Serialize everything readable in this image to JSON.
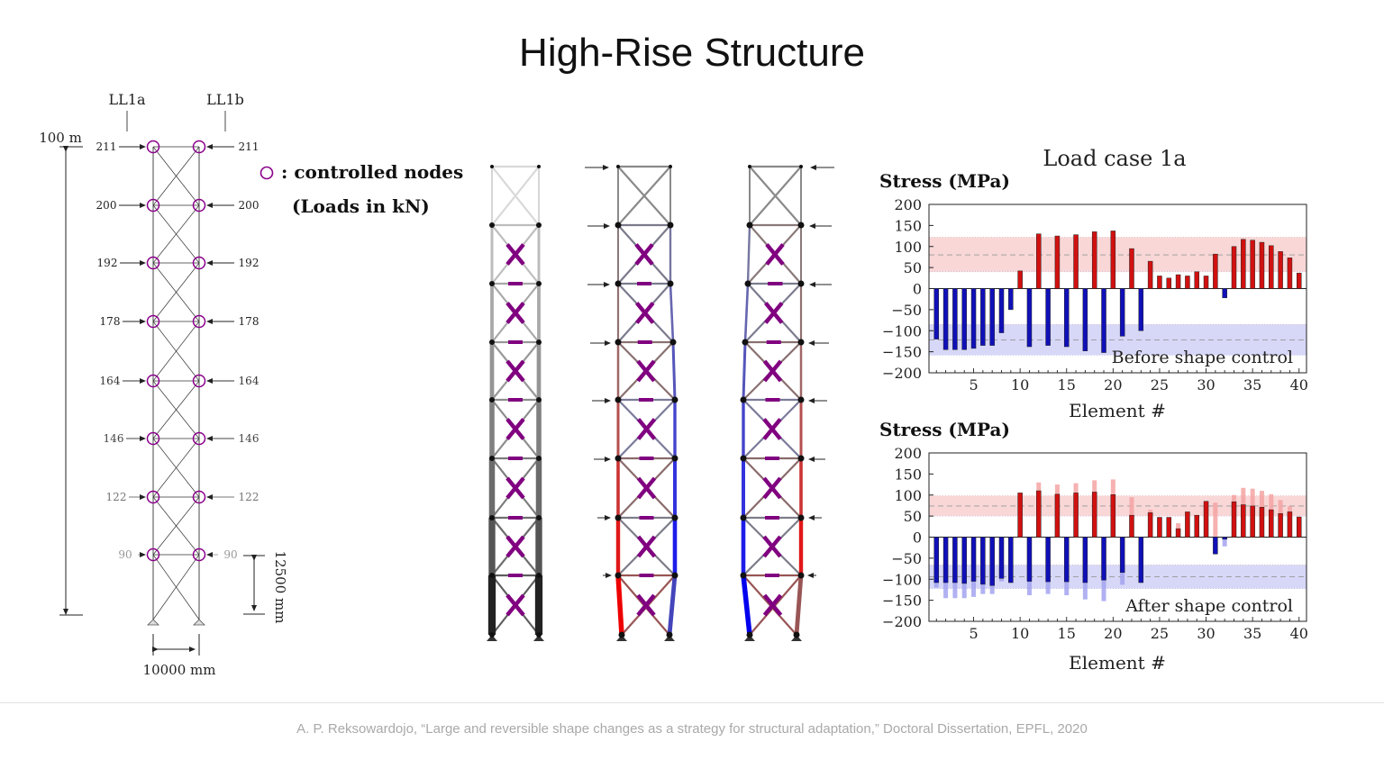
{
  "title": "High-Rise Structure",
  "footer": {
    "citation": "A. P. Reksowardojo, “Large and reversible shape changes as a strategy for structural adaptation,” Doctoral Dissertation, EPFL, 2020"
  },
  "schematic": {
    "load_case_a_label": "LL1a",
    "load_case_b_label": "LL1b",
    "height_label": "100 m",
    "width_label": "10000 mm",
    "bay_height_label": "12500 mm",
    "loads_kN": [
      "211",
      "200",
      "192",
      "178",
      "164",
      "146",
      "122",
      "90"
    ],
    "legend_controlled_nodes": ": controlled nodes",
    "legend_loads_unit": "(Loads in kN)",
    "colors": {
      "controlled_node": "#8b008b",
      "members": "#333333"
    }
  },
  "towers": {
    "colors": {
      "tension": "#ee0000",
      "compression": "#0000ee",
      "actuator": "#800080",
      "neutral": "#777777"
    }
  },
  "chart_data": [
    {
      "type": "bar",
      "title": "Load case 1a",
      "ylabel": "Stress (MPa)",
      "xlabel": "Element #",
      "annotation": "Before shape control",
      "ylim": [
        -200,
        200
      ],
      "yticks": [
        "200",
        "150",
        "100",
        "50",
        "0",
        "−50",
        "−100",
        "−150",
        "−200"
      ],
      "xticks": [
        "5",
        "10",
        "15",
        "20",
        "25",
        "30",
        "35",
        "40"
      ],
      "x": [
        1,
        2,
        3,
        4,
        5,
        6,
        7,
        8,
        9,
        10,
        11,
        12,
        13,
        14,
        15,
        16,
        17,
        18,
        19,
        20,
        21,
        22,
        23,
        24,
        25,
        26,
        27,
        28,
        29,
        30,
        31,
        32,
        33,
        34,
        35,
        36,
        37,
        38,
        39,
        40
      ],
      "values": [
        -120,
        -145,
        -145,
        -145,
        -142,
        -135,
        -135,
        -105,
        -50,
        42,
        -138,
        130,
        -135,
        125,
        -138,
        128,
        -148,
        135,
        -152,
        137,
        -113,
        95,
        -100,
        65,
        30,
        25,
        33,
        30,
        40,
        30,
        82,
        -22,
        100,
        117,
        115,
        110,
        102,
        88,
        73,
        37
      ],
      "bands": [
        {
          "from": 40,
          "to": 122,
          "mean": 80,
          "color": "#f7c9c9"
        },
        {
          "from": -158,
          "to": -85,
          "mean": -122,
          "color": "#c9c9f5"
        }
      ],
      "colors": {
        "positive": "#d11010",
        "negative": "#1010b8"
      },
      "grid": false
    },
    {
      "type": "bar",
      "ylabel": "Stress (MPa)",
      "xlabel": "Element #",
      "annotation": "After shape control",
      "ylim": [
        -200,
        200
      ],
      "yticks": [
        "200",
        "150",
        "100",
        "50",
        "0",
        "−50",
        "−100",
        "−150",
        "−200"
      ],
      "xticks": [
        "5",
        "10",
        "15",
        "20",
        "25",
        "30",
        "35",
        "40"
      ],
      "x": [
        1,
        2,
        3,
        4,
        5,
        6,
        7,
        8,
        9,
        10,
        11,
        12,
        13,
        14,
        15,
        16,
        17,
        18,
        19,
        20,
        21,
        22,
        23,
        24,
        25,
        26,
        27,
        28,
        29,
        30,
        31,
        32,
        33,
        34,
        35,
        36,
        37,
        38,
        39,
        40
      ],
      "values": [
        -108,
        -108,
        -108,
        -110,
        -105,
        -112,
        -115,
        -98,
        -108,
        105,
        -105,
        110,
        -106,
        102,
        -106,
        105,
        -108,
        107,
        -102,
        101,
        -84,
        52,
        -108,
        58,
        47,
        47,
        20,
        60,
        52,
        85,
        -40,
        -5,
        84,
        77,
        74,
        71,
        65,
        56,
        60,
        48
      ],
      "reference_values": [
        -120,
        -145,
        -145,
        -145,
        -142,
        -135,
        -135,
        -105,
        -50,
        42,
        -138,
        130,
        -135,
        125,
        -138,
        128,
        -148,
        135,
        -152,
        137,
        -113,
        95,
        -100,
        65,
        30,
        25,
        33,
        30,
        40,
        30,
        82,
        -22,
        100,
        117,
        115,
        110,
        102,
        88,
        73,
        37
      ],
      "bands": [
        {
          "from": 50,
          "to": 98,
          "mean": 74,
          "color": "#f7c9c9"
        },
        {
          "from": -122,
          "to": -66,
          "mean": -94,
          "color": "#c9c9f5"
        }
      ],
      "colors": {
        "positive": "#d11010",
        "negative": "#1010b8"
      },
      "grid": false
    }
  ]
}
